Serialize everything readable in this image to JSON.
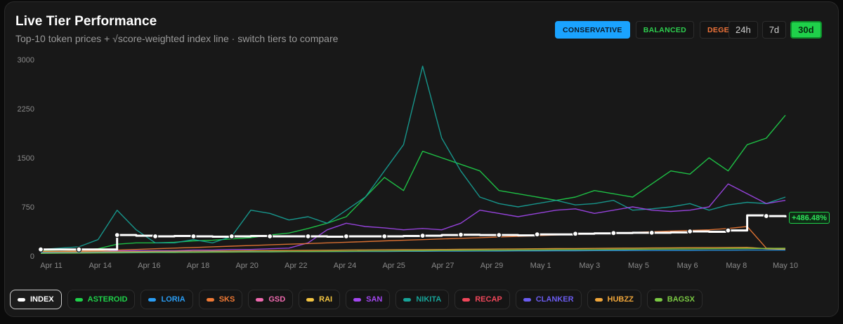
{
  "header": {
    "title": "Live Tier Performance",
    "subtitle": "Top-10 token prices + √score-weighted index line · switch tiers to compare"
  },
  "tiers": [
    {
      "label": "CONSERVATIVE",
      "color": "#1aa3ff",
      "active": true
    },
    {
      "label": "BALANCED",
      "color": "#2ecf4f",
      "active": false
    },
    {
      "label": "DEGEN",
      "color": "#f0743a",
      "active": false
    }
  ],
  "ranges": [
    {
      "label": "24h",
      "active": false
    },
    {
      "label": "7d",
      "active": false
    },
    {
      "label": "30d",
      "active": true
    }
  ],
  "index_change_label": "+486.48%",
  "legend": [
    {
      "label": "INDEX",
      "color": "#ffffff",
      "active": true
    },
    {
      "label": "ASTEROID",
      "color": "#1fd14a",
      "active": false
    },
    {
      "label": "LORIA",
      "color": "#2a9df4",
      "active": false
    },
    {
      "label": "SKS",
      "color": "#f07a35",
      "active": false
    },
    {
      "label": "GSD",
      "color": "#f06ab0",
      "active": false
    },
    {
      "label": "RAI",
      "color": "#f4c542",
      "active": false
    },
    {
      "label": "SAN",
      "color": "#a347f0",
      "active": false
    },
    {
      "label": "NIKITA",
      "color": "#17a398",
      "active": false
    },
    {
      "label": "RECAP",
      "color": "#f0475a",
      "active": false
    },
    {
      "label": "CLANKER",
      "color": "#6b5cf0",
      "active": false
    },
    {
      "label": "HUBZZ",
      "color": "#f0a63a",
      "active": false
    },
    {
      "label": "BAGSX",
      "color": "#7ac943",
      "active": false
    }
  ],
  "chart_data": {
    "type": "line",
    "x_ticks": [
      "Apr 11",
      "Apr 14",
      "Apr 16",
      "Apr 18",
      "Apr 20",
      "Apr 22",
      "Apr 24",
      "Apr 25",
      "Apr 27",
      "Apr 29",
      "May 1",
      "May 3",
      "May 5",
      "May 6",
      "May 8",
      "May 10"
    ],
    "y_ticks": [
      0,
      750,
      1500,
      2250,
      3000
    ],
    "ylim": [
      0,
      3000
    ],
    "grid": false,
    "series": [
      {
        "name": "INDEX",
        "color": "#ffffff",
        "values": [
          100,
          100,
          100,
          100,
          320,
          310,
          300,
          305,
          300,
          295,
          300,
          305,
          300,
          300,
          300,
          295,
          300,
          300,
          300,
          305,
          310,
          320,
          325,
          320,
          320,
          315,
          330,
          330,
          340,
          345,
          350,
          355,
          355,
          360,
          375,
          370,
          390,
          620,
          610,
          590
        ]
      },
      {
        "name": "ASTEROID",
        "color": "#1fd14a",
        "values": [
          80,
          90,
          90,
          110,
          180,
          200,
          200,
          210,
          230,
          240,
          260,
          280,
          320,
          350,
          420,
          500,
          600,
          900,
          1200,
          1000,
          1600,
          1500,
          1400,
          1300,
          1000,
          950,
          900,
          850,
          900,
          1000,
          950,
          900,
          1100,
          1300,
          1250,
          1500,
          1300,
          1700,
          1800,
          2150
        ]
      },
      {
        "name": "NIKITA",
        "color": "#17a398",
        "values": [
          100,
          120,
          140,
          250,
          700,
          400,
          200,
          200,
          250,
          200,
          300,
          700,
          650,
          550,
          600,
          500,
          700,
          900,
          1300,
          1700,
          2900,
          1800,
          1300,
          900,
          800,
          750,
          800,
          850,
          780,
          800,
          850,
          700,
          720,
          750,
          800,
          700,
          780,
          820,
          800,
          900
        ]
      },
      {
        "name": "SAN",
        "color": "#a347f0",
        "values": [
          60,
          60,
          60,
          60,
          80,
          80,
          80,
          80,
          90,
          90,
          100,
          100,
          110,
          120,
          200,
          400,
          500,
          450,
          430,
          400,
          420,
          400,
          500,
          700,
          650,
          600,
          650,
          700,
          720,
          650,
          700,
          750,
          700,
          680,
          700,
          750,
          1100,
          950,
          800,
          850
        ]
      },
      {
        "name": "SKS",
        "color": "#f07a35",
        "values": [
          70,
          70,
          75,
          80,
          90,
          100,
          110,
          120,
          130,
          140,
          150,
          160,
          170,
          180,
          190,
          200,
          210,
          220,
          230,
          240,
          250,
          260,
          270,
          280,
          290,
          300,
          310,
          320,
          330,
          340,
          350,
          360,
          370,
          380,
          390,
          400,
          420,
          450,
          120,
          110
        ]
      },
      {
        "name": "HUBZZ",
        "color": "#f0a63a",
        "values": [
          60,
          60,
          62,
          64,
          66,
          68,
          70,
          72,
          74,
          76,
          78,
          80,
          82,
          84,
          86,
          88,
          90,
          92,
          94,
          96,
          98,
          100,
          102,
          104,
          106,
          108,
          110,
          112,
          114,
          116,
          118,
          120,
          122,
          124,
          126,
          128,
          130,
          132,
          110,
          100
        ]
      },
      {
        "name": "LORIA",
        "color": "#2a9df4",
        "values": [
          50,
          50,
          50,
          52,
          54,
          56,
          58,
          60,
          60,
          62,
          62,
          64,
          64,
          66,
          66,
          68,
          68,
          70,
          70,
          72,
          72,
          74,
          74,
          76,
          76,
          78,
          78,
          80,
          80,
          82,
          82,
          84,
          84,
          86,
          86,
          88,
          88,
          90,
          90,
          90
        ]
      },
      {
        "name": "BAGSX",
        "color": "#7ac943",
        "values": [
          40,
          42,
          44,
          46,
          48,
          50,
          52,
          54,
          56,
          58,
          60,
          62,
          64,
          66,
          68,
          70,
          72,
          74,
          76,
          78,
          80,
          82,
          84,
          86,
          88,
          90,
          92,
          94,
          96,
          98,
          100,
          102,
          104,
          106,
          108,
          110,
          112,
          114,
          116,
          118
        ]
      }
    ]
  }
}
